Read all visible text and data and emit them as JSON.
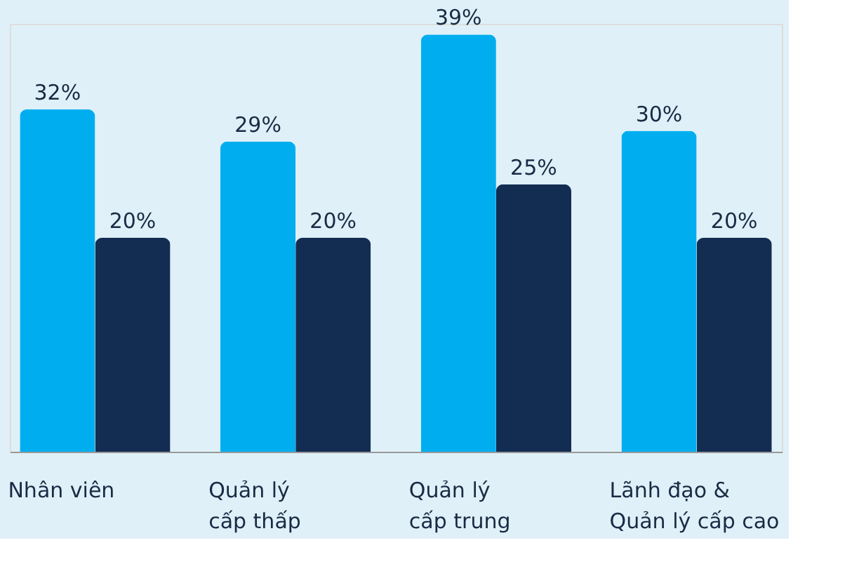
{
  "chart_data": {
    "type": "bar",
    "categories": [
      "Nhân viên",
      "Quản lý\ncấp thấp",
      "Quản lý\ncấp trung",
      "Lãnh đạo &\nQuản lý cấp cao"
    ],
    "series": [
      {
        "color": "#00aeef",
        "values": [
          32,
          29,
          39,
          30
        ],
        "value_labels": [
          "32%",
          "29%",
          "39%",
          "30%"
        ]
      },
      {
        "color": "#132d52",
        "values": [
          20,
          20,
          25,
          20
        ],
        "value_labels": [
          "20%",
          "20%",
          "25%",
          "20%"
        ]
      }
    ]
  }
}
